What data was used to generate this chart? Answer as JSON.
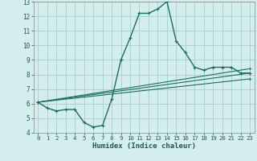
{
  "xlabel": "Humidex (Indice chaleur)",
  "background_color": "#d4eeed",
  "grid_color": "#aad4d0",
  "line_color": "#1a6e64",
  "xlim": [
    -0.5,
    23.5
  ],
  "ylim": [
    4,
    13
  ],
  "xticks": [
    0,
    1,
    2,
    3,
    4,
    5,
    6,
    7,
    8,
    9,
    10,
    11,
    12,
    13,
    14,
    15,
    16,
    17,
    18,
    19,
    20,
    21,
    22,
    23
  ],
  "yticks": [
    4,
    5,
    6,
    7,
    8,
    9,
    10,
    11,
    12,
    13
  ],
  "series": [
    {
      "x": [
        0,
        1,
        2,
        3,
        4,
        5,
        6,
        7,
        8,
        9,
        10,
        11,
        12,
        13,
        14,
        15,
        16,
        17,
        18,
        19,
        20,
        21,
        22,
        23
      ],
      "y": [
        6.1,
        5.7,
        5.5,
        5.6,
        5.6,
        4.7,
        4.4,
        4.5,
        6.3,
        9.0,
        10.5,
        12.2,
        12.2,
        12.5,
        13.0,
        10.3,
        9.5,
        8.5,
        8.3,
        8.5,
        8.5,
        8.5,
        8.1,
        8.1
      ]
    },
    {
      "x": [
        0,
        23
      ],
      "y": [
        6.1,
        8.1
      ]
    },
    {
      "x": [
        0,
        23
      ],
      "y": [
        6.1,
        7.7
      ]
    },
    {
      "x": [
        0,
        23
      ],
      "y": [
        6.1,
        8.4
      ]
    }
  ]
}
